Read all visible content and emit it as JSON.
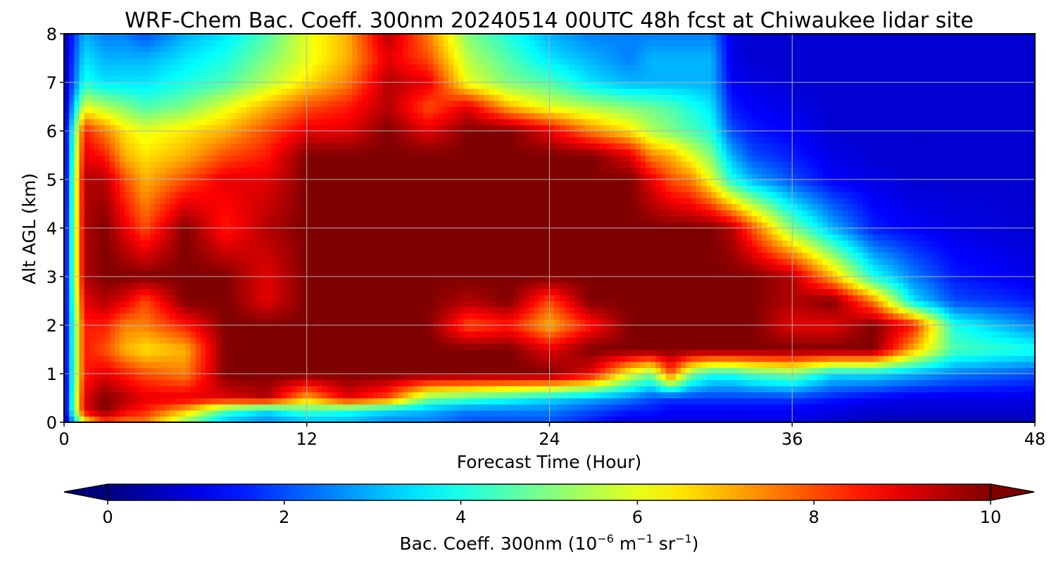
{
  "chart_data": {
    "type": "heatmap",
    "title": "WRF-Chem Bac. Coeff. 300nm  20240514 00UTC 48h fcst at Chiwaukee lidar site",
    "xlabel": "Forecast Time (Hour)",
    "ylabel": "Alt AGL (km)",
    "xlim": [
      0,
      48
    ],
    "ylim": [
      0,
      8
    ],
    "xticks": [
      0,
      12,
      24,
      36,
      48
    ],
    "yticks": [
      0,
      1,
      2,
      3,
      4,
      5,
      6,
      7,
      8
    ],
    "grid": true,
    "colormap": "jet",
    "colorbar": {
      "label_prefix": "Bac. Coeff. 300nm  (10",
      "label_exp1": "−6",
      "label_unit1": " m",
      "label_exp2": "−1",
      "label_unit2": " sr",
      "label_exp3": "−1",
      "label_suffix": ")",
      "vmin": 0,
      "vmax": 10,
      "ticks": [
        0,
        2,
        4,
        6,
        8,
        10
      ],
      "extend": "both"
    },
    "x": [
      0,
      1,
      2,
      3,
      4,
      6,
      8,
      10,
      12,
      14,
      16,
      18,
      20,
      22,
      24,
      26,
      28,
      29,
      30,
      31,
      32,
      33,
      34,
      36,
      38,
      40,
      42,
      44,
      48
    ],
    "y": [
      0,
      0.25,
      0.5,
      1,
      1.5,
      2,
      2.5,
      3,
      4,
      5,
      5.5,
      6,
      6.5,
      7,
      7.5,
      8
    ],
    "z": [
      [
        0.3,
        6.0,
        8.0,
        7.5,
        7.5,
        5.0,
        3.0,
        2.5,
        3.0,
        3.0,
        2.5,
        2.5,
        2.0,
        2.0,
        2.0,
        1.5,
        1.0,
        1.0,
        1.0,
        1.0,
        1.0,
        1.0,
        1.0,
        1.0,
        0.8,
        0.6,
        0.6,
        0.6,
        0.6
      ],
      [
        0.5,
        9.0,
        10.0,
        9.0,
        8.5,
        7.0,
        4.5,
        3.5,
        4.5,
        4.0,
        3.5,
        3.0,
        2.5,
        2.5,
        2.5,
        2.0,
        1.5,
        1.5,
        1.2,
        1.2,
        1.2,
        1.2,
        1.2,
        1.2,
        1.0,
        0.8,
        0.8,
        0.8,
        0.8
      ],
      [
        0.5,
        9.0,
        10.0,
        9.5,
        9.0,
        9.0,
        9.0,
        9.5,
        7.0,
        9.0,
        8.0,
        5.0,
        4.5,
        4.0,
        3.5,
        3.0,
        2.5,
        2.0,
        1.8,
        1.8,
        1.8,
        1.8,
        1.8,
        1.8,
        1.5,
        1.2,
        1.0,
        1.0,
        1.0
      ],
      [
        0.5,
        8.5,
        9.0,
        8.5,
        8.0,
        7.5,
        10.0,
        10.0,
        10.0,
        10.0,
        10.0,
        10.0,
        10.0,
        10.0,
        10.0,
        9.0,
        6.0,
        5.0,
        8.0,
        5.0,
        4.0,
        4.0,
        4.5,
        5.0,
        3.5,
        3.5,
        3.0,
        2.5,
        2.0
      ],
      [
        0.6,
        8.5,
        8.0,
        7.0,
        6.5,
        7.0,
        10.0,
        10.0,
        10.0,
        10.0,
        10.0,
        10.0,
        10.0,
        10.0,
        9.0,
        10.0,
        10.0,
        10.0,
        10.0,
        10.0,
        10.0,
        10.0,
        10.0,
        10.0,
        10.0,
        10.0,
        7.0,
        4.5,
        4.0
      ],
      [
        0.6,
        8.5,
        8.5,
        7.5,
        7.5,
        8.5,
        10.0,
        10.0,
        10.0,
        10.0,
        10.0,
        10.0,
        8.0,
        8.5,
        7.0,
        8.5,
        10.0,
        10.0,
        10.0,
        10.0,
        10.0,
        10.0,
        10.0,
        9.0,
        9.0,
        10.0,
        8.5,
        4.0,
        2.5
      ],
      [
        0.6,
        9.0,
        9.5,
        9.0,
        8.0,
        10.0,
        10.0,
        9.0,
        10.0,
        10.0,
        10.0,
        10.0,
        9.5,
        10.0,
        8.0,
        10.0,
        10.0,
        10.0,
        10.0,
        10.0,
        10.0,
        10.0,
        10.0,
        9.5,
        10.0,
        7.5,
        3.5,
        2.0,
        1.5
      ],
      [
        0.6,
        9.5,
        10.0,
        10.0,
        10.0,
        10.0,
        10.0,
        9.0,
        10.0,
        10.0,
        10.0,
        10.0,
        10.0,
        10.0,
        10.0,
        10.0,
        10.0,
        10.0,
        10.0,
        10.0,
        10.0,
        10.0,
        10.0,
        9.5,
        7.0,
        4.0,
        2.5,
        1.5,
        1.0
      ],
      [
        0.6,
        9.5,
        10.0,
        9.0,
        8.0,
        10.0,
        8.5,
        9.5,
        10.0,
        10.0,
        10.0,
        10.0,
        10.0,
        10.0,
        10.0,
        10.0,
        10.0,
        10.0,
        10.0,
        10.0,
        10.0,
        9.5,
        8.0,
        5.0,
        3.0,
        1.5,
        1.2,
        1.0,
        0.8
      ],
      [
        0.5,
        9.5,
        9.5,
        8.0,
        7.0,
        8.0,
        9.0,
        9.0,
        10.0,
        10.0,
        10.0,
        10.0,
        10.0,
        10.0,
        10.0,
        10.0,
        10.0,
        9.0,
        8.0,
        7.5,
        6.0,
        4.0,
        3.0,
        2.0,
        1.2,
        1.0,
        0.8,
        0.8,
        0.8
      ],
      [
        0.5,
        9.0,
        8.5,
        7.0,
        6.5,
        7.0,
        8.0,
        8.5,
        10.0,
        10.0,
        10.0,
        10.0,
        10.0,
        10.0,
        10.0,
        10.0,
        9.0,
        7.5,
        7.0,
        6.0,
        5.0,
        3.0,
        2.0,
        1.5,
        1.0,
        0.8,
        0.8,
        0.8,
        0.8
      ],
      [
        0.5,
        8.5,
        7.5,
        6.5,
        6.0,
        6.5,
        7.0,
        8.0,
        9.0,
        9.0,
        10.0,
        9.0,
        10.0,
        10.0,
        9.0,
        7.5,
        6.5,
        5.5,
        5.0,
        4.5,
        4.0,
        2.0,
        1.5,
        1.2,
        0.8,
        0.8,
        0.8,
        0.8,
        0.8
      ],
      [
        0.5,
        6.0,
        5.5,
        5.0,
        4.5,
        5.0,
        6.0,
        7.0,
        8.0,
        8.5,
        9.5,
        8.0,
        9.0,
        7.0,
        6.0,
        5.5,
        5.0,
        4.8,
        4.5,
        4.0,
        3.5,
        1.5,
        1.2,
        1.0,
        0.8,
        0.8,
        0.8,
        0.8,
        0.8
      ],
      [
        0.5,
        4.0,
        3.5,
        3.5,
        3.5,
        4.0,
        4.5,
        5.5,
        6.5,
        7.5,
        9.5,
        9.0,
        6.0,
        5.0,
        4.5,
        3.5,
        3.0,
        3.0,
        3.0,
        3.0,
        3.0,
        1.2,
        1.0,
        0.8,
        0.8,
        0.8,
        0.8,
        0.8,
        0.8
      ],
      [
        0.5,
        3.5,
        3.0,
        3.0,
        3.0,
        3.5,
        4.0,
        5.0,
        6.0,
        7.0,
        9.0,
        8.0,
        5.5,
        4.5,
        3.5,
        3.0,
        2.5,
        3.0,
        3.0,
        3.0,
        3.0,
        1.0,
        0.8,
        0.8,
        0.8,
        0.8,
        0.8,
        0.8,
        0.8
      ],
      [
        0.5,
        3.0,
        2.5,
        2.5,
        2.0,
        3.0,
        3.5,
        4.5,
        6.0,
        7.0,
        9.5,
        7.5,
        5.0,
        4.0,
        3.0,
        2.5,
        2.5,
        2.5,
        2.5,
        2.5,
        2.5,
        1.0,
        0.8,
        0.8,
        0.8,
        0.8,
        0.8,
        0.8,
        0.8
      ]
    ]
  }
}
